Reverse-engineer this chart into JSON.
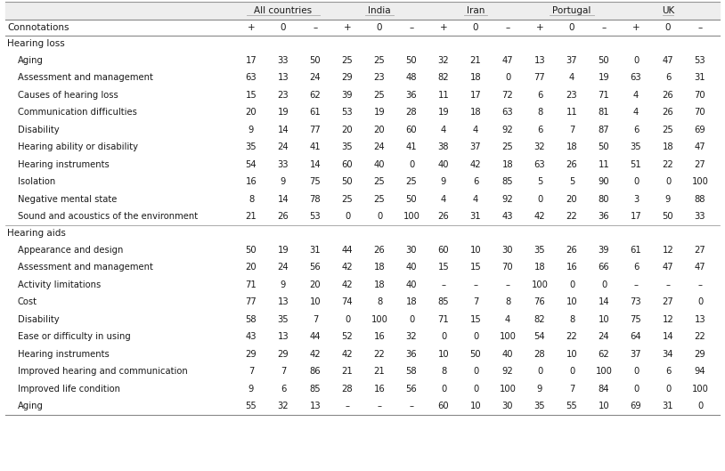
{
  "header_groups": [
    "All countries",
    "India",
    "Iran",
    "Portugal",
    "UK"
  ],
  "connotations_label": "Connotations",
  "connotations": [
    "+",
    "0",
    "–",
    "+",
    "0",
    "–",
    "+",
    "0",
    "–",
    "+",
    "0",
    "–",
    "+",
    "0",
    "–"
  ],
  "section_hearing_loss": "Hearing loss",
  "section_hearing_aids": "Hearing aids",
  "rows_hearing_loss": [
    {
      "label": "Aging",
      "data": [
        "17",
        "33",
        "50",
        "25",
        "25",
        "50",
        "32",
        "21",
        "47",
        "13",
        "37",
        "50",
        "0",
        "47",
        "53"
      ]
    },
    {
      "label": "Assessment and management",
      "data": [
        "63",
        "13",
        "24",
        "29",
        "23",
        "48",
        "82",
        "18",
        "0",
        "77",
        "4",
        "19",
        "63",
        "6",
        "31"
      ]
    },
    {
      "label": "Causes of hearing loss",
      "data": [
        "15",
        "23",
        "62",
        "39",
        "25",
        "36",
        "11",
        "17",
        "72",
        "6",
        "23",
        "71",
        "4",
        "26",
        "70"
      ]
    },
    {
      "label": "Communication difficulties",
      "data": [
        "20",
        "19",
        "61",
        "53",
        "19",
        "28",
        "19",
        "18",
        "63",
        "8",
        "11",
        "81",
        "4",
        "26",
        "70"
      ]
    },
    {
      "label": "Disability",
      "data": [
        "9",
        "14",
        "77",
        "20",
        "20",
        "60",
        "4",
        "4",
        "92",
        "6",
        "7",
        "87",
        "6",
        "25",
        "69"
      ]
    },
    {
      "label": "Hearing ability or disability",
      "data": [
        "35",
        "24",
        "41",
        "35",
        "24",
        "41",
        "38",
        "37",
        "25",
        "32",
        "18",
        "50",
        "35",
        "18",
        "47"
      ]
    },
    {
      "label": "Hearing instruments",
      "data": [
        "54",
        "33",
        "14",
        "60",
        "40",
        "0",
        "40",
        "42",
        "18",
        "63",
        "26",
        "11",
        "51",
        "22",
        "27"
      ]
    },
    {
      "label": "Isolation",
      "data": [
        "16",
        "9",
        "75",
        "50",
        "25",
        "25",
        "9",
        "6",
        "85",
        "5",
        "5",
        "90",
        "0",
        "0",
        "100"
      ]
    },
    {
      "label": "Negative mental state",
      "data": [
        "8",
        "14",
        "78",
        "25",
        "25",
        "50",
        "4",
        "4",
        "92",
        "0",
        "20",
        "80",
        "3",
        "9",
        "88"
      ]
    },
    {
      "label": "Sound and acoustics of the environment",
      "data": [
        "21",
        "26",
        "53",
        "0",
        "0",
        "100",
        "26",
        "31",
        "43",
        "42",
        "22",
        "36",
        "17",
        "50",
        "33"
      ]
    }
  ],
  "rows_hearing_aids": [
    {
      "label": "Appearance and design",
      "data": [
        "50",
        "19",
        "31",
        "44",
        "26",
        "30",
        "60",
        "10",
        "30",
        "35",
        "26",
        "39",
        "61",
        "12",
        "27"
      ]
    },
    {
      "label": "Assessment and management",
      "data": [
        "20",
        "24",
        "56",
        "42",
        "18",
        "40",
        "15",
        "15",
        "70",
        "18",
        "16",
        "66",
        "6",
        "47",
        "47"
      ]
    },
    {
      "label": "Activity limitations",
      "data": [
        "71",
        "9",
        "20",
        "42",
        "18",
        "40",
        "–",
        "–",
        "–",
        "100",
        "0",
        "0",
        "–",
        "–",
        "–"
      ]
    },
    {
      "label": "Cost",
      "data": [
        "77",
        "13",
        "10",
        "74",
        "8",
        "18",
        "85",
        "7",
        "8",
        "76",
        "10",
        "14",
        "73",
        "27",
        "0"
      ]
    },
    {
      "label": "Disability",
      "data": [
        "58",
        "35",
        "7",
        "0",
        "100",
        "0",
        "71",
        "15",
        "4",
        "82",
        "8",
        "10",
        "75",
        "12",
        "13"
      ]
    },
    {
      "label": "Ease or difficulty in using",
      "data": [
        "43",
        "13",
        "44",
        "52",
        "16",
        "32",
        "0",
        "0",
        "100",
        "54",
        "22",
        "24",
        "64",
        "14",
        "22"
      ]
    },
    {
      "label": "Hearing instruments",
      "data": [
        "29",
        "29",
        "42",
        "42",
        "22",
        "36",
        "10",
        "50",
        "40",
        "28",
        "10",
        "62",
        "37",
        "34",
        "29"
      ]
    },
    {
      "label": "Improved hearing and communication",
      "data": [
        "7",
        "7",
        "86",
        "21",
        "21",
        "58",
        "8",
        "0",
        "92",
        "0",
        "0",
        "100",
        "0",
        "6",
        "94"
      ]
    },
    {
      "label": "Improved life condition",
      "data": [
        "9",
        "6",
        "85",
        "28",
        "16",
        "56",
        "0",
        "0",
        "100",
        "9",
        "7",
        "84",
        "0",
        "0",
        "100"
      ]
    },
    {
      "label": "Aging",
      "data": [
        "55",
        "32",
        "13",
        "–",
        "–",
        "–",
        "60",
        "10",
        "30",
        "35",
        "55",
        "10",
        "69",
        "31",
        "0"
      ]
    }
  ],
  "bg_color": "#ffffff",
  "text_color": "#1a1a1a",
  "header_bg": "#eeeeee",
  "font_size": 7.2,
  "font_size_section": 7.5,
  "font_size_header": 7.5
}
